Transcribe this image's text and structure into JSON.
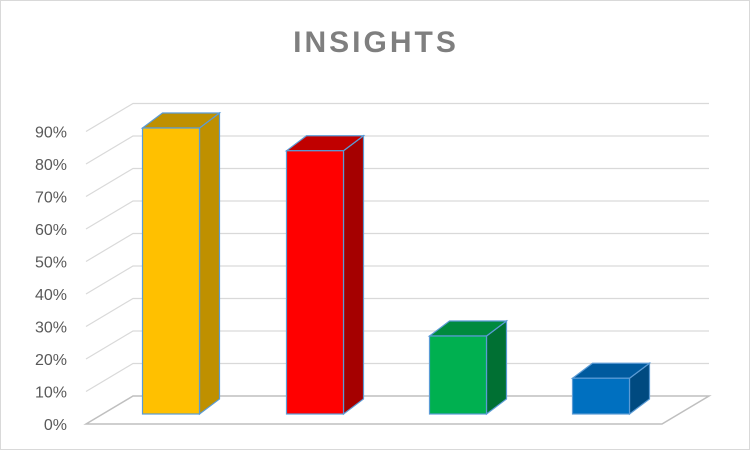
{
  "chart_data": {
    "type": "bar",
    "title": "INSIGHTS",
    "xlabel": "",
    "ylabel": "",
    "categories": [
      "",
      "",
      "",
      ""
    ],
    "values": [
      0.88,
      0.81,
      0.24,
      0.11
    ],
    "ylim": [
      0,
      0.9
    ],
    "y_ticks": [
      "0%",
      "10%",
      "20%",
      "30%",
      "40%",
      "50%",
      "60%",
      "70%",
      "80%",
      "90%"
    ],
    "grid": true,
    "legend": "none",
    "style": "3d-column",
    "bar_colors": [
      {
        "front": "#ffc000",
        "side": "#bf9000",
        "top": "#bf9000"
      },
      {
        "front": "#ff0000",
        "side": "#a50000",
        "top": "#c00000"
      },
      {
        "front": "#00b050",
        "side": "#007033",
        "top": "#008a3e"
      },
      {
        "front": "#0070c0",
        "side": "#004a80",
        "top": "#005a9e"
      }
    ],
    "bar_edge_color": "#5b9bd5"
  }
}
